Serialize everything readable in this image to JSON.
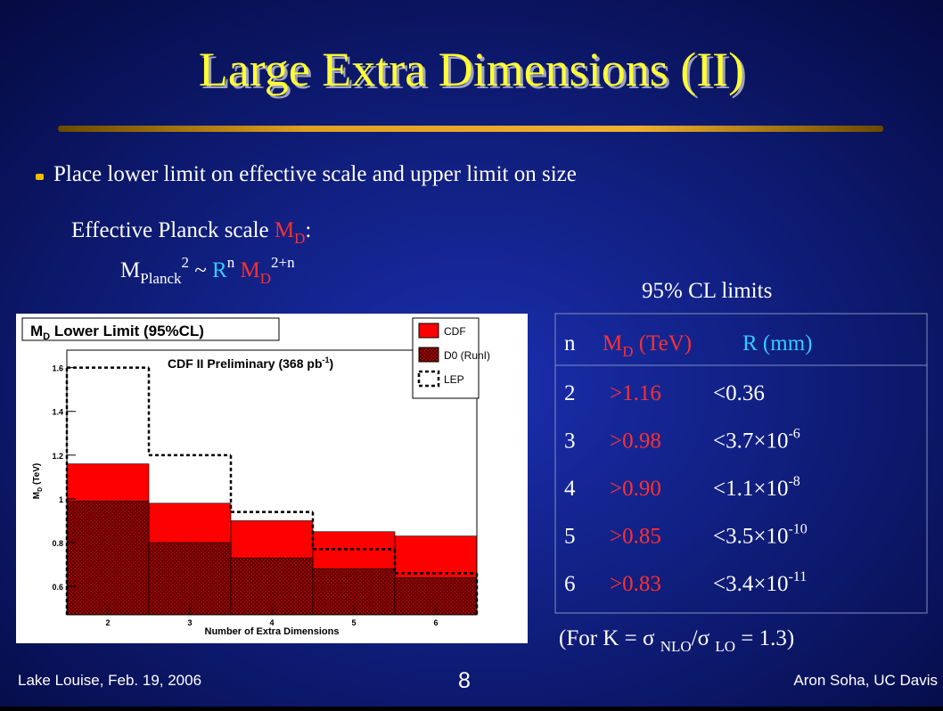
{
  "slide": {
    "title": "Large Extra Dimensions (II)",
    "bullet": "Place lower limit on effective scale and upper limit on size",
    "planck_label": [
      "Effective Planck scale ",
      "M",
      "D",
      ":"
    ],
    "formula": [
      "M",
      "Planck",
      "2",
      " ~ ",
      "R",
      "n",
      " M",
      "D",
      "2+n"
    ],
    "limits_title": "95% CL limits",
    "table": {
      "header": [
        "n",
        "M",
        "D",
        " (TeV)",
        "R (mm)"
      ],
      "rows": [
        [
          "2",
          ">1.16",
          "<0.36"
        ],
        [
          "3",
          ">0.98",
          "<3.7×10",
          "-6"
        ],
        [
          "4",
          ">0.90",
          "<1.1×10",
          "-8"
        ],
        [
          "5",
          ">0.85",
          "<3.5×10",
          "-10"
        ],
        [
          "6",
          ">0.83",
          "<3.4×10",
          "-11"
        ]
      ]
    },
    "note": [
      "(For K = σ ",
      "NLO",
      "/σ ",
      "LO",
      " = 1.3)"
    ],
    "footer_left": "Lake Louise, Feb. 19, 2006",
    "page": "8",
    "footer_right": "Aron Soha, UC Davis"
  },
  "chart_data": {
    "type": "histogram",
    "title": [
      "M",
      "D",
      " Lower Limit (95%CL)"
    ],
    "annotation": [
      "CDF II Preliminary (368 pb",
      "-1",
      ")"
    ],
    "xlabel": "Number of Extra Dimensions",
    "ylabel": [
      "M",
      "D",
      " (TeV)"
    ],
    "bins": [
      1.5,
      2.5,
      3.5,
      4.5,
      5.5,
      6.5
    ],
    "series": [
      {
        "name": "CDF",
        "color": "#ff0000",
        "style": "fill",
        "values": [
          1.16,
          0.98,
          0.9,
          0.85,
          0.83
        ]
      },
      {
        "name": "D0 (RunI)",
        "color": "#c00000",
        "style": "crosshatch",
        "values": [
          0.99,
          0.8,
          0.73,
          0.68,
          0.64
        ]
      },
      {
        "name": "LEP",
        "color": "#000000",
        "style": "dashed",
        "values": [
          1.6,
          1.2,
          0.94,
          0.77,
          0.66
        ]
      }
    ],
    "xlim": [
      1.5,
      6.5
    ],
    "ylim": [
      0.47,
      1.68
    ],
    "xticks": [
      2,
      3,
      4,
      5,
      6
    ],
    "yticks": [
      0.6,
      0.8,
      1,
      1.2,
      1.4,
      1.6
    ]
  }
}
